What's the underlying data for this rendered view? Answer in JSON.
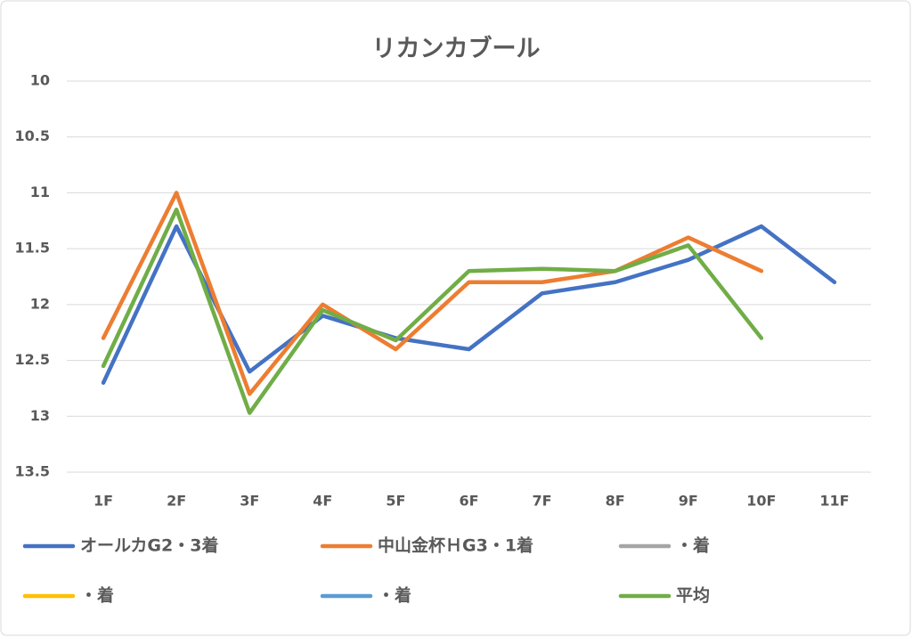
{
  "chart_data": {
    "type": "line",
    "title": "リカンカブール",
    "categories": [
      "1F",
      "2F",
      "3F",
      "4F",
      "5F",
      "6F",
      "7F",
      "8F",
      "9F",
      "10F",
      "11F"
    ],
    "series": [
      {
        "name": "オールカG2・3着",
        "color": "#4472c4",
        "values": [
          12.7,
          11.3,
          12.6,
          12.1,
          12.3,
          12.4,
          11.9,
          11.8,
          11.6,
          11.3,
          11.8
        ]
      },
      {
        "name": "中山金杯ＨG3・1着",
        "color": "#ed7d31",
        "values": [
          12.3,
          11.0,
          12.8,
          12.0,
          12.4,
          11.8,
          11.8,
          11.7,
          11.4,
          11.7,
          null
        ]
      },
      {
        "name": "・着",
        "color": "#a5a5a5",
        "values": [
          null,
          null,
          null,
          null,
          null,
          null,
          null,
          null,
          null,
          null,
          null
        ]
      },
      {
        "name": "・着",
        "color": "#ffc000",
        "values": [
          null,
          null,
          null,
          null,
          null,
          null,
          null,
          null,
          null,
          null,
          null
        ]
      },
      {
        "name": "・着",
        "color": "#5b9bd5",
        "values": [
          null,
          null,
          null,
          null,
          null,
          null,
          null,
          null,
          null,
          null,
          null
        ]
      },
      {
        "name": "平均",
        "color": "#70ad47",
        "values": [
          12.55,
          11.15,
          12.97,
          12.05,
          12.32,
          11.7,
          11.68,
          11.7,
          11.47,
          12.3,
          null
        ]
      }
    ],
    "ylim": [
      10,
      13.5
    ],
    "yticks": [
      10,
      10.5,
      11,
      11.5,
      12,
      12.5,
      13,
      13.5
    ],
    "y_inverted": true,
    "grid": true,
    "legend": "bottom"
  }
}
